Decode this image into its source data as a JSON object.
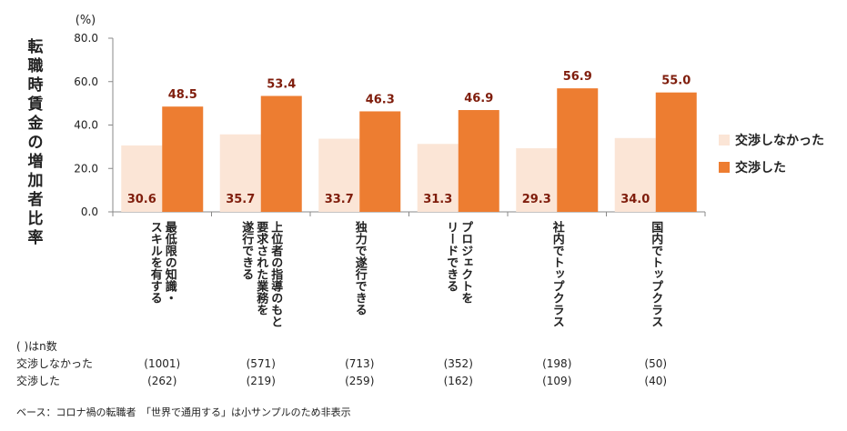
{
  "chart_data": {
    "type": "bar",
    "unit_label": "(%)",
    "ylabel": "転職時賃金の増加者比率",
    "ylim": [
      0,
      80
    ],
    "yticks": [
      "0.0",
      "20.0",
      "40.0",
      "60.0",
      "80.0"
    ],
    "categories": [
      [
        "最低限の知識・",
        "スキルを有する"
      ],
      [
        "上位者の指導のもと",
        "要求された業務を",
        "遂行できる"
      ],
      [
        "独力で遂行できる"
      ],
      [
        "プロジェクトを",
        "リードできる"
      ],
      [
        "社内でトップクラス"
      ],
      [
        "国内でトップクラス"
      ]
    ],
    "series": [
      {
        "name": "交渉しなかった",
        "color": "#FBE5D6",
        "label_color": "#7F1D0C",
        "values": [
          30.6,
          35.7,
          33.7,
          31.3,
          29.3,
          34.0
        ],
        "value_labels": [
          "30.6",
          "35.7",
          "33.7",
          "31.3",
          "29.3",
          "34.0"
        ]
      },
      {
        "name": "交渉した",
        "color": "#ED7D31",
        "label_color": "#7F1D0C",
        "values": [
          48.5,
          53.4,
          46.3,
          46.9,
          56.9,
          55.0
        ],
        "value_labels": [
          "48.5",
          "53.4",
          "46.3",
          "46.9",
          "56.9",
          "55.0"
        ]
      }
    ],
    "legend_position": "right",
    "grid": false
  },
  "ntable": {
    "header": "( )はn数",
    "rows": [
      {
        "label": "交渉しなかった",
        "values": [
          "(1001)",
          "(571)",
          "(713)",
          "(352)",
          "(198)",
          "(50)"
        ]
      },
      {
        "label": "交渉した",
        "values": [
          "(262)",
          "(219)",
          "(259)",
          "(162)",
          "(109)",
          "(40)"
        ]
      }
    ]
  },
  "note": "ベース：コロナ禍の転職者　「世界で通用する」は小サンプルのため非表示"
}
